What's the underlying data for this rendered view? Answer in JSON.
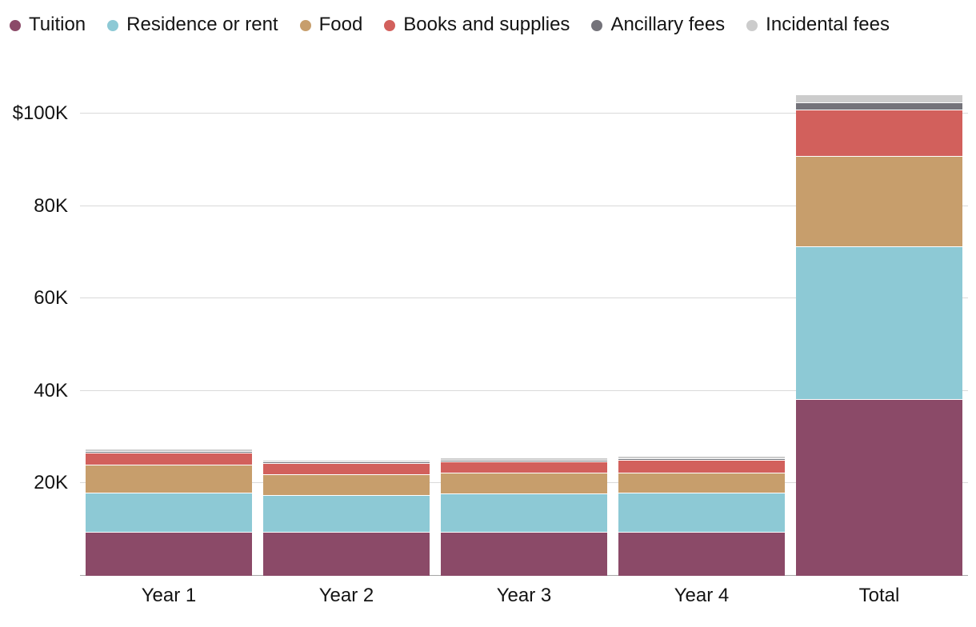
{
  "chart_data": {
    "type": "bar",
    "stacked": true,
    "unit": "thousands of dollars (K = $1,000)",
    "categories": [
      "Year 1",
      "Year 2",
      "Year 3",
      "Year 4",
      "Total"
    ],
    "series": [
      {
        "name": "Tuition",
        "color": "#8b4a68",
        "values": [
          9.5,
          9.5,
          9.6,
          9.6,
          38.2
        ]
      },
      {
        "name": "Residence or rent",
        "color": "#8dc9d5",
        "values": [
          8.5,
          8.0,
          8.2,
          8.4,
          33.1
        ]
      },
      {
        "name": "Food",
        "color": "#c79e6c",
        "values": [
          6.0,
          4.5,
          4.6,
          4.4,
          19.5
        ]
      },
      {
        "name": "Books and supplies",
        "color": "#d2605c",
        "values": [
          2.6,
          2.4,
          2.4,
          2.7,
          10.1
        ]
      },
      {
        "name": "Ancillary fees",
        "color": "#74737a",
        "values": [
          0.4,
          0.35,
          0.35,
          0.4,
          1.5
        ]
      },
      {
        "name": "Incidental fees",
        "color": "#cccccc",
        "values": [
          0.5,
          0.4,
          0.4,
          0.5,
          1.8
        ]
      }
    ],
    "yticks": [
      20,
      40,
      60,
      80,
      100
    ],
    "ytick_labels": [
      "20K",
      "40K",
      "60K",
      "80K",
      "$100K"
    ],
    "ylim": [
      0,
      105
    ],
    "grid": true,
    "legend_position": "top"
  }
}
